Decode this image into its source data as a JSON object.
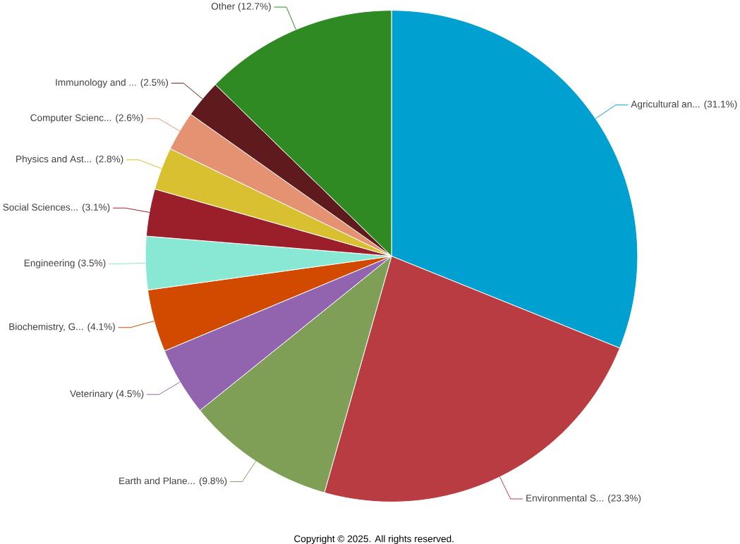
{
  "chart_data": {
    "type": "pie",
    "categories": [
      "Agricultural an...",
      "Environmental S...",
      "Earth and Plane...",
      "Veterinary",
      "Biochemistry, G...",
      "Engineering",
      "Social Sciences...",
      "Physics and Ast...",
      "Computer Scienc...",
      "Immunology and ...",
      "Other"
    ],
    "values": [
      31.1,
      23.3,
      9.8,
      4.5,
      4.1,
      3.5,
      3.1,
      2.8,
      2.6,
      2.5,
      12.7
    ],
    "value_labels": [
      "(31.1%)",
      "(23.3%)",
      "(9.8%)",
      "(4.5%)",
      "(4.1%)",
      "(3.5%)",
      "(3.1%)",
      "(2.8%)",
      "(2.6%)",
      "(2.5%)",
      "(12.7%)"
    ],
    "colors": [
      "#00a0d1",
      "#b83c41",
      "#7f9e56",
      "#9264b0",
      "#d24a00",
      "#88e8d4",
      "#9a1f2b",
      "#d8c030",
      "#e49272",
      "#5e1a1c",
      "#2f8a23"
    ],
    "annotations": [
      "Copyright © 2025. All rights reserved."
    ]
  }
}
